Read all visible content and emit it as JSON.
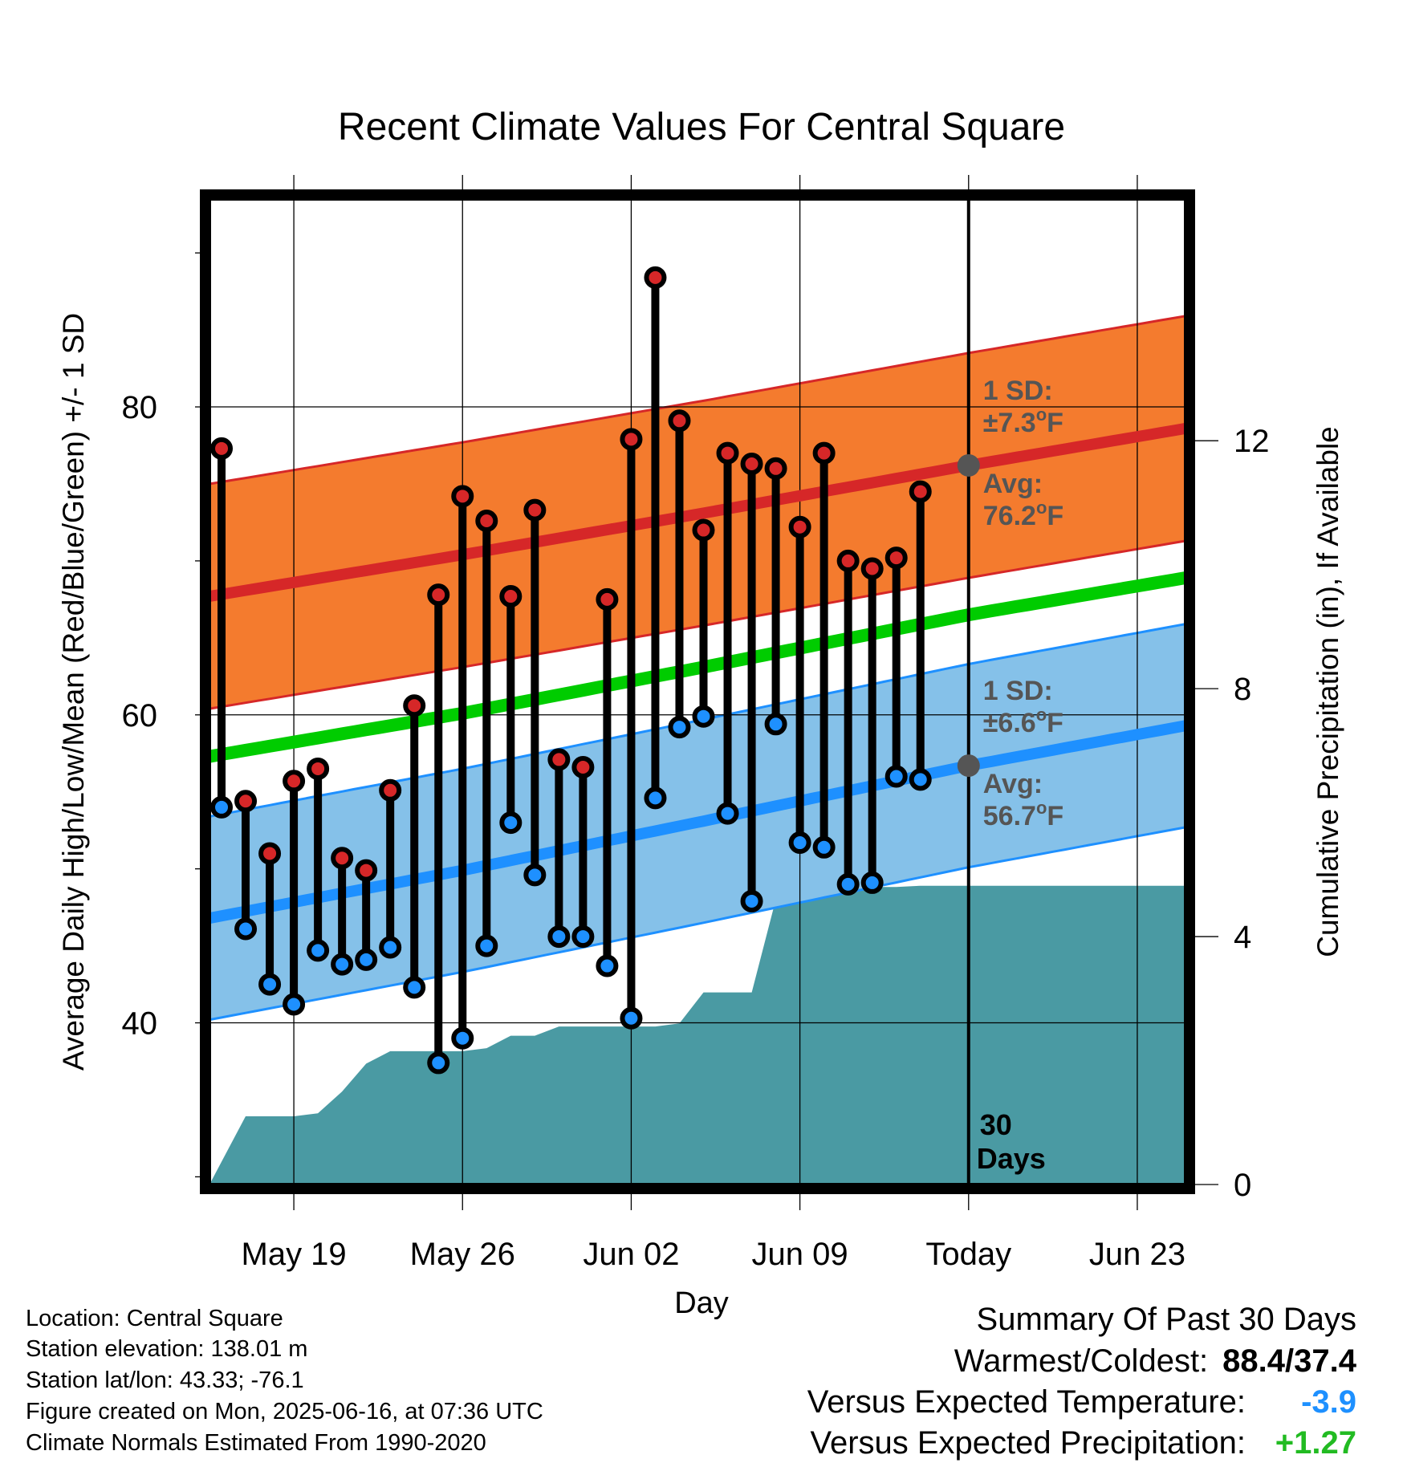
{
  "title": "Recent Climate Values For Central Square",
  "info": {
    "location": "Location: Central Square",
    "elevation": "Station elevation: 138.01 m",
    "latlon": "Station lat/lon: 43.33; -76.1",
    "created": "Figure created on Mon, 2025-06-16, at 07:36 UTC",
    "normals": "Climate Normals Estimated From 1990-2020"
  },
  "summary": {
    "heading": "Summary Of Past 30 Days",
    "warm_cold_label": "Warmest/Coldest:",
    "warm_cold_value": "88.4/37.4",
    "temp_label": "Versus Expected Temperature:",
    "temp_value": "-3.9",
    "precip_label": "Versus Expected Precipitation:",
    "precip_value": "+1.27",
    "temp_color": "#1e90ff",
    "precip_color": "#22bb22"
  },
  "chart_data": {
    "type": "line",
    "title": "Recent Climate Values For Central Square",
    "xlabel": "Day",
    "ylabel": "Average Daily High/Low/Mean (Red/Blue/Green) +/- 1 SD",
    "y2label": "Cumulative Precipitation (in), If Available",
    "x_ticks": [
      "May 19",
      "May 26",
      "Jun 02",
      "Jun 09",
      "Today",
      "Jun 23"
    ],
    "x_tick_days": [
      3,
      10,
      17,
      24,
      31,
      38
    ],
    "x_range": [
      -0.5,
      40
    ],
    "y_range": [
      29.5,
      93.5
    ],
    "y_ticks": [
      40,
      60,
      80
    ],
    "y2_range": [
      0,
      15.9
    ],
    "y2_ticks": [
      0,
      4,
      8,
      12
    ],
    "grid": true,
    "today_day": 31,
    "today_label": [
      "30",
      "Days"
    ],
    "colors": {
      "high_band": "#f47b2e",
      "high_band_edge": "#d62728",
      "high_mean": "#d62728",
      "low_band": "#85c1e9",
      "low_band_edge": "#1e90ff",
      "low_mean": "#1e90ff",
      "mean": "#00cc00",
      "precip": "#4a9aa3",
      "high_marker": "#d62728",
      "low_marker": "#1e90ff",
      "annotation": "#555555"
    },
    "normals": {
      "high_mean": [
        [
          -0.5,
          67.7
        ],
        [
          10,
          70.4
        ],
        [
          20,
          73.1
        ],
        [
          31,
          76.2
        ],
        [
          40,
          78.6
        ]
      ],
      "high_sd": 7.3,
      "low_mean": [
        [
          -0.5,
          46.8
        ],
        [
          10,
          49.9
        ],
        [
          20,
          53.1
        ],
        [
          31,
          56.7
        ],
        [
          40,
          59.3
        ]
      ],
      "low_sd": 6.6,
      "daily_mean": [
        [
          -0.5,
          57.3
        ],
        [
          10,
          60.1
        ],
        [
          20,
          63.1
        ],
        [
          31,
          66.5
        ],
        [
          40,
          68.9
        ]
      ]
    },
    "annotations": {
      "high_sd_label": [
        "1 SD:",
        "±7.3",
        "o",
        "F"
      ],
      "high_avg_label": [
        "Avg:",
        "76.2",
        "o",
        "F"
      ],
      "low_sd_label": [
        "1 SD:",
        "±6.6",
        "o",
        "F"
      ],
      "low_avg_label": [
        "Avg:",
        "56.7",
        "o",
        "F"
      ]
    },
    "series": [
      {
        "name": "High",
        "x": [
          0,
          1,
          2,
          3,
          4,
          5,
          6,
          7,
          8,
          9,
          10,
          11,
          12,
          13,
          14,
          15,
          16,
          17,
          18,
          19,
          20,
          21,
          22,
          23,
          24,
          25,
          26,
          27,
          28,
          29,
          30
        ],
        "values": [
          77.3,
          54.4,
          51.0,
          55.7,
          56.5,
          50.7,
          49.9,
          55.1,
          60.6,
          67.8,
          74.2,
          72.6,
          67.7,
          73.3,
          57.1,
          56.6,
          67.5,
          77.9,
          88.4,
          79.1,
          72.0,
          77.0,
          76.3,
          76.0,
          72.2,
          77.0,
          70.0,
          69.5,
          70.2,
          74.5,
          null
        ]
      },
      {
        "name": "Low",
        "x": [
          0,
          1,
          2,
          3,
          4,
          5,
          6,
          7,
          8,
          9,
          10,
          11,
          12,
          13,
          14,
          15,
          16,
          17,
          18,
          19,
          20,
          21,
          22,
          23,
          24,
          25,
          26,
          27,
          28,
          29,
          30
        ],
        "values": [
          54.0,
          46.1,
          42.5,
          41.2,
          44.7,
          43.8,
          44.1,
          44.9,
          42.3,
          37.4,
          39.0,
          45.0,
          53.0,
          49.6,
          45.6,
          45.6,
          43.7,
          40.3,
          54.6,
          59.2,
          59.9,
          53.6,
          47.9,
          59.4,
          51.7,
          51.4,
          49.0,
          49.1,
          56.0,
          55.8,
          null
        ]
      },
      {
        "name": "Precipitation",
        "x": [
          -0.5,
          1,
          2,
          3,
          4,
          5,
          6,
          7,
          8,
          9,
          10,
          11,
          12,
          13,
          14,
          15,
          16,
          17,
          18,
          19,
          20,
          21,
          22,
          23,
          24,
          25,
          26,
          27,
          28,
          29,
          30,
          31,
          40
        ],
        "values": [
          0.0,
          1.1,
          1.1,
          1.1,
          1.15,
          1.5,
          1.95,
          2.15,
          2.15,
          2.15,
          2.15,
          2.2,
          2.4,
          2.4,
          2.55,
          2.55,
          2.55,
          2.55,
          2.55,
          2.6,
          3.1,
          3.1,
          3.1,
          4.6,
          4.8,
          4.8,
          4.8,
          4.8,
          4.8,
          4.82,
          4.82,
          4.82,
          4.82
        ]
      }
    ]
  }
}
